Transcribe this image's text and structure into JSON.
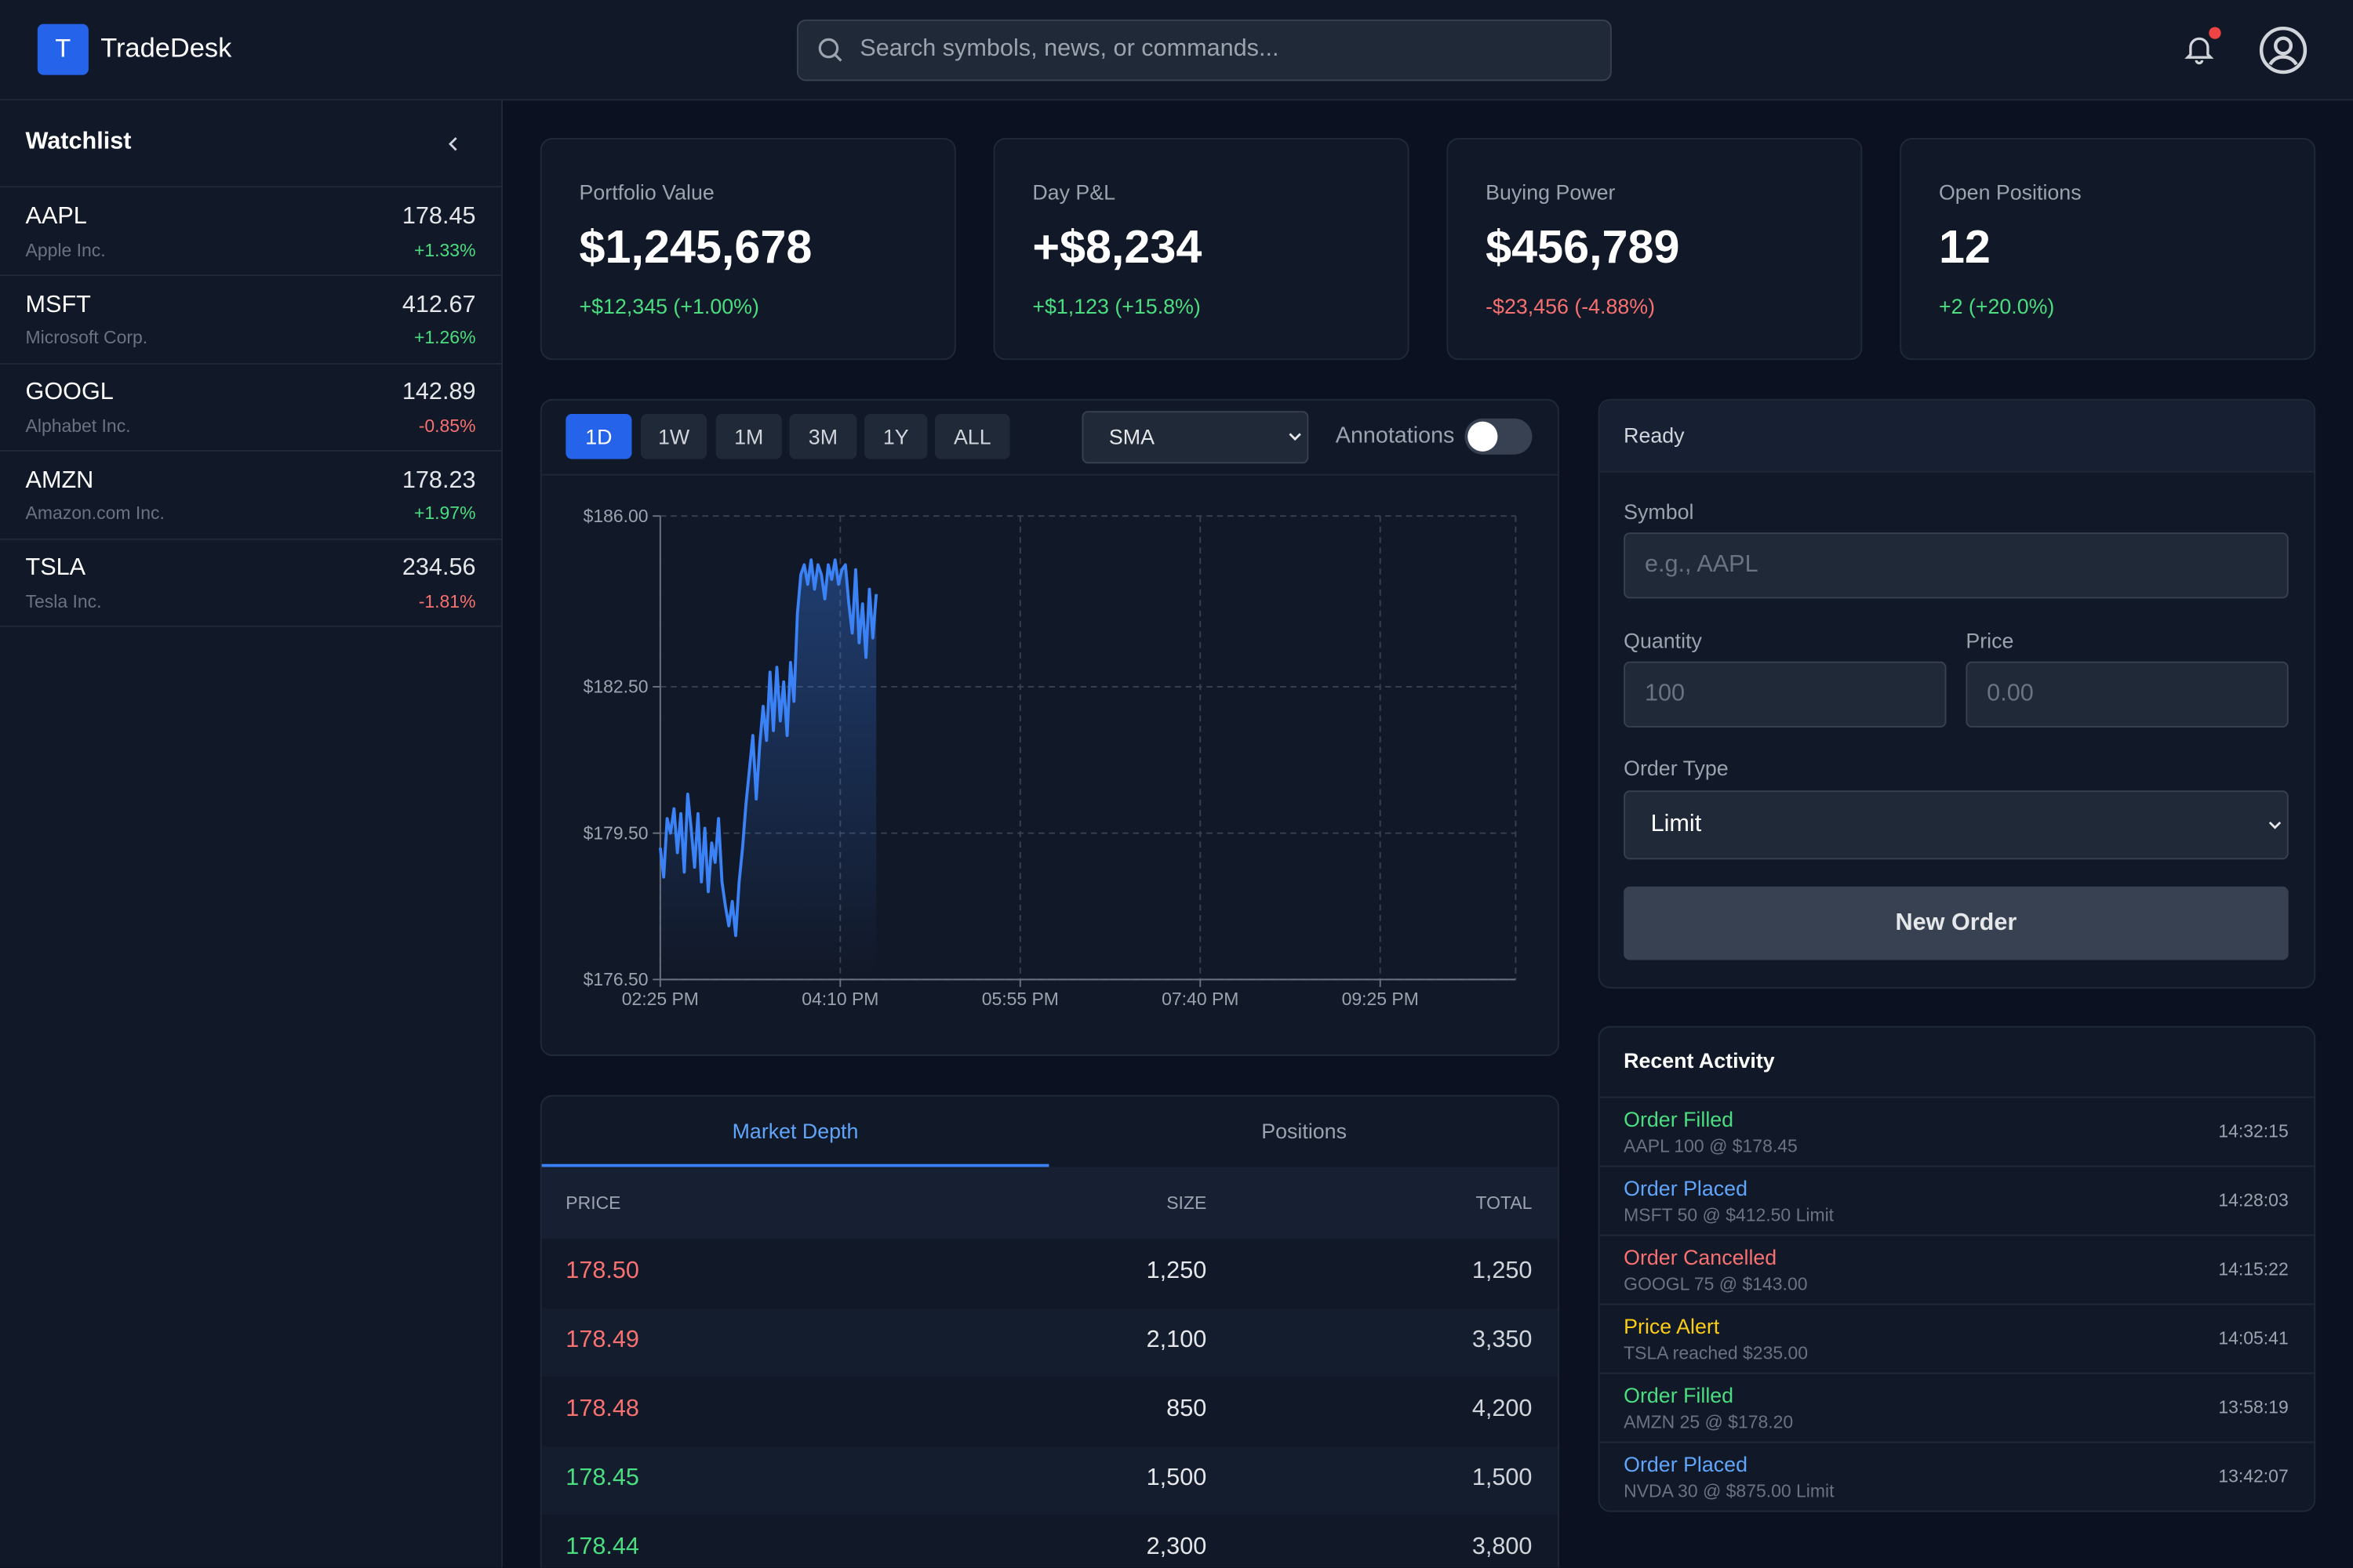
{
  "header": {
    "logo_letter": "T",
    "brand": "TradeDesk",
    "search_placeholder": "Search symbols, news, or commands..."
  },
  "watchlist": {
    "title": "Watchlist",
    "items": [
      {
        "symbol": "AAPL",
        "name": "Apple Inc.",
        "price": "178.45",
        "change": "+1.33%",
        "color": "#4ade80"
      },
      {
        "symbol": "MSFT",
        "name": "Microsoft Corp.",
        "price": "412.67",
        "change": "+1.26%",
        "color": "#4ade80"
      },
      {
        "symbol": "GOOGL",
        "name": "Alphabet Inc.",
        "price": "142.89",
        "change": "-0.85%",
        "color": "#f87171"
      },
      {
        "symbol": "AMZN",
        "name": "Amazon.com Inc.",
        "price": "178.23",
        "change": "+1.97%",
        "color": "#4ade80"
      },
      {
        "symbol": "TSLA",
        "name": "Tesla Inc.",
        "price": "234.56",
        "change": "-1.81%",
        "color": "#f87171"
      }
    ]
  },
  "stats": [
    {
      "label": "Portfolio Value",
      "value": "$1,245,678",
      "change": "+$12,345 (+1.00%)",
      "color": "#4ade80"
    },
    {
      "label": "Day P&L",
      "value": "+$8,234",
      "change": "+$1,123 (+15.8%)",
      "color": "#4ade80"
    },
    {
      "label": "Buying Power",
      "value": "$456,789",
      "change": "-$23,456 (-4.88%)",
      "color": "#f87171"
    },
    {
      "label": "Open Positions",
      "value": "12",
      "change": "+2 (+20.0%)",
      "color": "#4ade80"
    }
  ],
  "chart_controls": {
    "ranges": [
      "1D",
      "1W",
      "1M",
      "3M",
      "1Y",
      "ALL"
    ],
    "active_range": "1D",
    "indicator": "SMA",
    "annotations_label": "Annotations"
  },
  "price_chart": {
    "type": "line",
    "color": "#3b82f6",
    "grid": true,
    "xlim": [
      "02:25 PM",
      "10:44 PM"
    ],
    "xticks": [
      "02:25 PM",
      "04:10 PM",
      "05:55 PM",
      "07:40 PM",
      "09:25 PM"
    ],
    "ylim": [
      176.5,
      186
    ],
    "yticks": [
      {
        "value": 176.5,
        "label": "$176.50"
      },
      {
        "value": 179.5,
        "label": "$179.50"
      },
      {
        "value": 182.5,
        "label": "$182.50"
      },
      {
        "value": 186,
        "label": "$186.00"
      }
    ],
    "x": [
      "02:25 PM",
      "02:27 PM",
      "02:29 PM",
      "02:31 PM",
      "02:33 PM",
      "02:35 PM",
      "02:37 PM",
      "02:39 PM",
      "02:41 PM",
      "02:43 PM",
      "02:45 PM",
      "02:47 PM",
      "02:49 PM",
      "02:51 PM",
      "02:53 PM",
      "02:55 PM",
      "02:57 PM",
      "02:59 PM",
      "03:01 PM",
      "03:03 PM",
      "03:05 PM",
      "03:07 PM",
      "03:09 PM",
      "03:11 PM",
      "03:13 PM",
      "03:15 PM",
      "03:17 PM",
      "03:19 PM",
      "03:21 PM",
      "03:23 PM",
      "03:25 PM",
      "03:27 PM",
      "03:29 PM",
      "03:31 PM",
      "03:33 PM",
      "03:35 PM",
      "03:37 PM",
      "03:39 PM",
      "03:41 PM",
      "03:43 PM",
      "03:45 PM",
      "03:47 PM",
      "03:49 PM",
      "03:51 PM",
      "03:53 PM",
      "03:55 PM",
      "03:57 PM",
      "03:59 PM",
      "04:01 PM",
      "04:03 PM",
      "04:05 PM",
      "04:07 PM",
      "04:09 PM",
      "04:11 PM",
      "04:13 PM",
      "04:15 PM",
      "04:17 PM",
      "04:19 PM",
      "04:21 PM",
      "04:23 PM",
      "04:25 PM",
      "04:27 PM",
      "04:29 PM",
      "04:31 PM"
    ],
    "values": [
      179.2,
      178.6,
      179.8,
      179.5,
      180.0,
      179.1,
      179.9,
      178.7,
      180.3,
      179.6,
      178.8,
      179.9,
      178.5,
      179.6,
      178.3,
      179.3,
      178.9,
      179.8,
      178.5,
      178.0,
      177.6,
      178.1,
      177.4,
      178.5,
      179.2,
      180.1,
      180.8,
      181.5,
      180.2,
      181.3,
      182.1,
      181.4,
      182.8,
      181.6,
      182.9,
      181.8,
      182.6,
      181.5,
      183.0,
      182.2,
      184.0,
      184.8,
      185.0,
      184.6,
      185.1,
      184.5,
      185.0,
      184.8,
      184.3,
      185.0,
      184.7,
      185.1,
      184.6,
      184.9,
      185.0,
      184.2,
      183.6,
      184.9,
      183.4,
      184.2,
      183.1,
      184.5,
      183.5,
      184.4
    ]
  },
  "depth": {
    "tabs": [
      "Market Depth",
      "Positions"
    ],
    "columns": [
      "PRICE",
      "SIZE",
      "TOTAL"
    ],
    "rows": [
      {
        "price": "178.50",
        "size": "1,250",
        "total": "1,250",
        "color": "#f87171"
      },
      {
        "price": "178.49",
        "size": "2,100",
        "total": "3,350",
        "color": "#f87171"
      },
      {
        "price": "178.48",
        "size": "850",
        "total": "4,200",
        "color": "#f87171"
      },
      {
        "price": "178.45",
        "size": "1,500",
        "total": "1,500",
        "color": "#4ade80"
      },
      {
        "price": "178.44",
        "size": "2,300",
        "total": "3,800",
        "color": "#4ade80"
      }
    ]
  },
  "order": {
    "status": "Ready",
    "symbol_label": "Symbol",
    "symbol_placeholder": "e.g., AAPL",
    "quantity_label": "Quantity",
    "quantity_placeholder": "100",
    "price_label": "Price",
    "price_placeholder": "0.00",
    "type_label": "Order Type",
    "type": "Limit",
    "button": "New Order"
  },
  "activity": {
    "title": "Recent Activity",
    "items": [
      {
        "title": "Order Filled",
        "detail": "AAPL 100 @ $178.45",
        "time": "14:32:15",
        "color": "#4ade80"
      },
      {
        "title": "Order Placed",
        "detail": "MSFT 50 @ $412.50 Limit",
        "time": "14:28:03",
        "color": "#60a5fa"
      },
      {
        "title": "Order Cancelled",
        "detail": "GOOGL 75 @ $143.00",
        "time": "14:15:22",
        "color": "#f87171"
      },
      {
        "title": "Price Alert",
        "detail": "TSLA reached $235.00",
        "time": "14:05:41",
        "color": "#facc15"
      },
      {
        "title": "Order Filled",
        "detail": "AMZN 25 @ $178.20",
        "time": "13:58:19",
        "color": "#4ade80"
      },
      {
        "title": "Order Placed",
        "detail": "NVDA 30 @ $875.00 Limit",
        "time": "13:42:07",
        "color": "#60a5fa"
      }
    ]
  }
}
